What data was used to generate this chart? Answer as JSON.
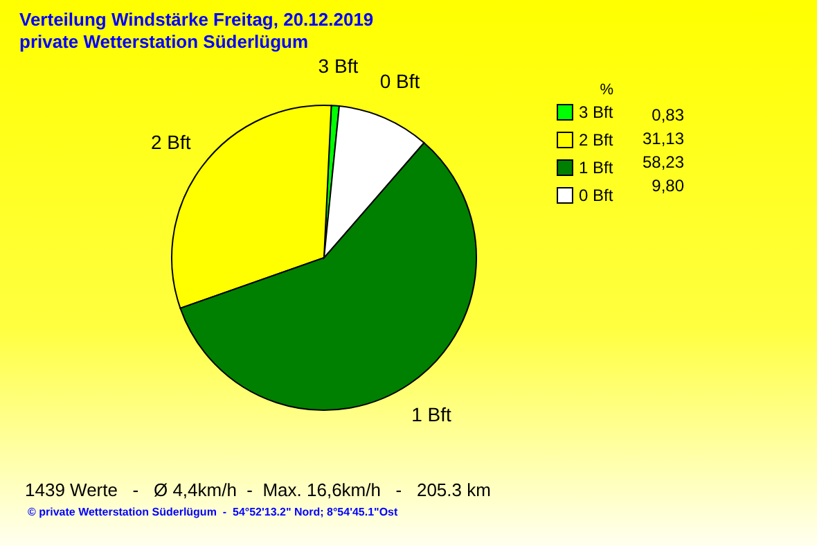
{
  "chart_data": {
    "type": "pie",
    "title": "Verteilung Windstärke  Freitag, 20.12.2019",
    "subtitle": "private Wetterstation Süderlügum",
    "categories": [
      "3 Bft",
      "2 Bft",
      "1 Bft",
      "0 Bft"
    ],
    "values": [
      0.83,
      31.13,
      58.23,
      9.8
    ],
    "colors": [
      "#00ff00",
      "#ffff00",
      "#008000",
      "#ffffff"
    ],
    "value_labels": [
      "0,83",
      "31,13",
      "58,23",
      "9,80"
    ],
    "legend_title": "%",
    "legend": "top right",
    "annotations": [
      "1439 Werte   -   Ø 4,4km/h  -  Max. 16,6km/h   -   205.3 km",
      "© private Wetterstation Süderlügum  -  54°52'13.2\" Nord; 8°54'45.1\"Ost"
    ]
  }
}
